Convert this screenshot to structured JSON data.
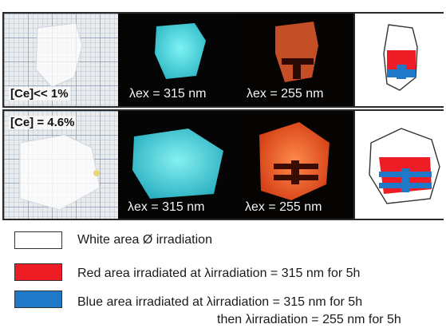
{
  "rows": [
    {
      "concentration_label": "[Ce]<< 1%",
      "blue_excitation_label": "λex = 315 nm",
      "red_excitation_label": "λex = 255 nm"
    },
    {
      "concentration_label": "[Ce] = 4.6%",
      "blue_excitation_label": "λex = 315 nm",
      "red_excitation_label": "λex = 255 nm"
    }
  ],
  "legend": [
    {
      "color": "#ffffff",
      "text": "White area Ø irradiation"
    },
    {
      "color": "#ee1c24",
      "text": "Red area irradiated at λirradiation = 315 nm for 5h"
    },
    {
      "color": "#1f78c8",
      "text": "Blue area irradiated at λirradiation = 315 nm for 5h",
      "text2": "then λirradiation = 255 nm for 5h"
    }
  ],
  "colors": {
    "cyan_glow": "#4fe0e8",
    "orange_glow": "#ff6a2a",
    "diagram_red": "#ee1c24",
    "diagram_blue": "#1f78c8"
  }
}
